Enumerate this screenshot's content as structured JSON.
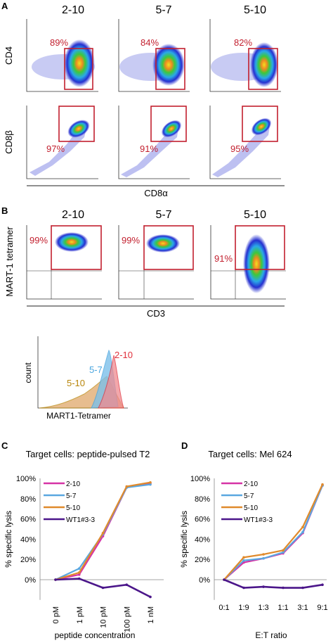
{
  "panel_labels": {
    "a": "A",
    "b": "B",
    "c": "C",
    "d": "D"
  },
  "panel_a": {
    "columns": [
      "2-10",
      "5-7",
      "5-10"
    ],
    "row_labels": [
      "CD4",
      "CD8β"
    ],
    "x_label": "CD8α",
    "cd4_percents": [
      "89%",
      "84%",
      "82%"
    ],
    "cd8b_percents": [
      "97%",
      "91%",
      "95%"
    ]
  },
  "panel_b": {
    "columns": [
      "2-10",
      "5-7",
      "5-10"
    ],
    "y_label": "MART-1 tetramer",
    "x_label": "CD3",
    "percents": [
      "99%",
      "99%",
      "91%"
    ],
    "histogram": {
      "y_label": "count",
      "x_label": "MART1-Tetramer",
      "series": [
        {
          "name": "2-10",
          "color": "#e0303c"
        },
        {
          "name": "5-7",
          "color": "#4aa6df"
        },
        {
          "name": "5-10",
          "color": "#b8860b"
        }
      ]
    }
  },
  "chart_data": [
    {
      "type": "line",
      "title": "Target cells: peptide-pulsed T2",
      "xlabel": "peptide concentration",
      "ylabel": "% specific lysis",
      "categories": [
        "0 pM",
        "1 pM",
        "10 pM",
        "100 pM",
        "1 nM"
      ],
      "ylim": [
        -20,
        100
      ],
      "yticks": [
        "0%",
        "20%",
        "40%",
        "60%",
        "80%",
        "100%"
      ],
      "grid": false,
      "legend": "top-left",
      "series": [
        {
          "name": "2-10",
          "color": "#d633a6",
          "values": [
            0,
            5,
            43,
            91,
            95
          ]
        },
        {
          "name": "5-7",
          "color": "#5aa7e0",
          "values": [
            0,
            11,
            45,
            91,
            94
          ]
        },
        {
          "name": "5-10",
          "color": "#e08a2c",
          "values": [
            0,
            7,
            46,
            92,
            96
          ]
        },
        {
          "name": "WT1#3-3",
          "color": "#4b168a",
          "values": [
            0,
            1,
            -8,
            -5,
            -17
          ]
        }
      ]
    },
    {
      "type": "line",
      "title": "Target cells: Mel 624",
      "xlabel": "E:T ratio",
      "ylabel": "% specific lysis",
      "categories": [
        "0:1",
        "1:9",
        "1:3",
        "1:1",
        "3:1",
        "9:1"
      ],
      "ylim": [
        -20,
        100
      ],
      "yticks": [
        "0%",
        "20%",
        "40%",
        "60%",
        "80%",
        "100%"
      ],
      "grid": false,
      "legend": "top-left",
      "series": [
        {
          "name": "2-10",
          "color": "#d633a6",
          "values": [
            0,
            17,
            21,
            26,
            46,
            93
          ]
        },
        {
          "name": "5-7",
          "color": "#5aa7e0",
          "values": [
            0,
            19,
            21,
            27,
            47,
            93
          ]
        },
        {
          "name": "5-10",
          "color": "#e08a2c",
          "values": [
            0,
            22,
            25,
            29,
            52,
            94
          ]
        },
        {
          "name": "WT1#3-3",
          "color": "#4b168a",
          "values": [
            0,
            -8,
            -7,
            -8,
            -8,
            -5
          ]
        }
      ]
    }
  ]
}
